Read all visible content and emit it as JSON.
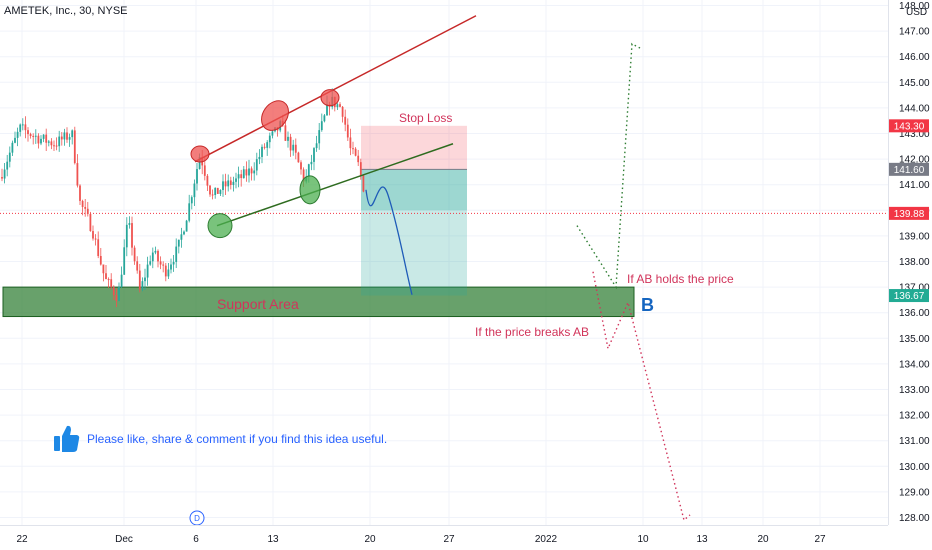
{
  "chart_data": {
    "type": "candlestick",
    "title": "AMETEK, Inc., 30, NYSE",
    "currency": "USD",
    "x_tick_labels": [
      "22",
      "Dec",
      "6",
      "13",
      "20",
      "27",
      "2022",
      "10",
      "13",
      "20",
      "27"
    ],
    "y_ticks": [
      128.0,
      129.0,
      130.0,
      131.0,
      132.0,
      133.0,
      134.0,
      135.0,
      136.0,
      137.0,
      138.0,
      139.0,
      140.0,
      141.0,
      142.0,
      143.0,
      144.0,
      145.0,
      146.0,
      147.0,
      148.0
    ],
    "y_tick_labels": [
      "128.00",
      "129.00",
      "130.00",
      "131.00",
      "132.00",
      "133.00",
      "134.00",
      "135.00",
      "136.00",
      "137.00",
      "138.00",
      "139.00",
      "140.00",
      "141.00",
      "142.00",
      "143.00",
      "144.00",
      "145.00",
      "146.00",
      "147.00",
      "148.00"
    ],
    "ylim": [
      127.6,
      148.3
    ],
    "price_labels": [
      {
        "value": 143.3,
        "text": "143.30",
        "color": "#f23645"
      },
      {
        "value": 141.6,
        "text": "141.60",
        "color": "#787b86"
      },
      {
        "value": 139.88,
        "text": "139.88",
        "color": "#f23645"
      },
      {
        "value": 136.67,
        "text": "136.67",
        "color": "#22ab94"
      }
    ],
    "current_price": 139.88,
    "annotations": {
      "stop_loss": "Stop Loss",
      "support_area": "Support Area",
      "point_b": "B",
      "holds": "If AB holds the price",
      "breaks": "If the price breaks AB",
      "like_message": "Please like, share & comment if you find this idea useful.",
      "dividend_marker": "D"
    },
    "colors": {
      "up": "#26a69a",
      "down": "#ef5350",
      "support": "#2e7d32",
      "resistance": "#c62828",
      "accent": "#2962ff",
      "annotation": "#d1345b"
    }
  }
}
